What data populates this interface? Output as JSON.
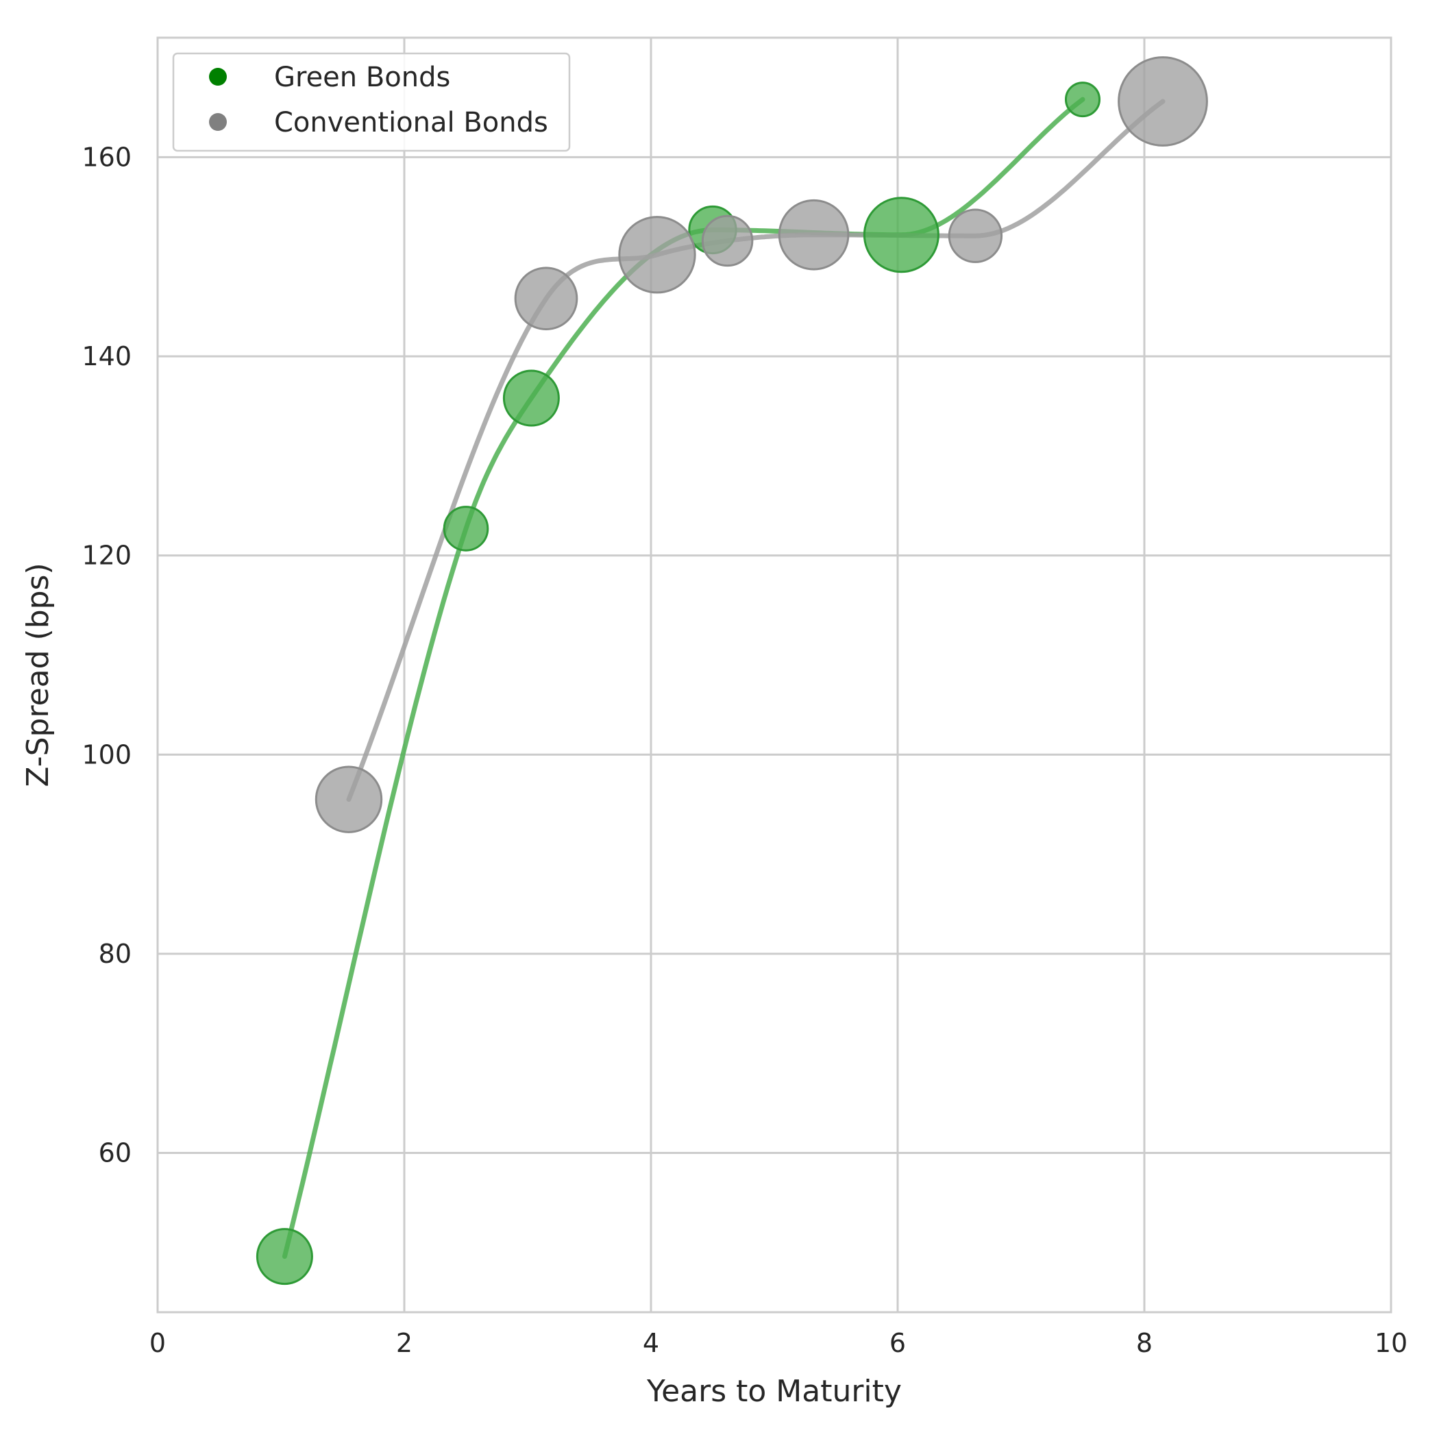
{
  "chart_data": {
    "type": "scatter",
    "title": "",
    "xlabel": "Years to Maturity",
    "ylabel": "Z-Spread (bps)",
    "xlim": [
      0,
      10
    ],
    "ylim": [
      44,
      172
    ],
    "xticks": [
      0,
      2,
      4,
      6,
      8,
      10
    ],
    "yticks": [
      60,
      80,
      100,
      120,
      140,
      160
    ],
    "grid": true,
    "legend_position": "top-left",
    "series": [
      {
        "name": "Green Bonds",
        "color": "#008000",
        "points": [
          {
            "x": 1.03,
            "y": 49.6,
            "size": 4
          },
          {
            "x": 2.5,
            "y": 122.7,
            "size": 2
          },
          {
            "x": 3.03,
            "y": 135.8,
            "size": 4
          },
          {
            "x": 4.5,
            "y": 152.7,
            "size": 2.5
          },
          {
            "x": 6.03,
            "y": 152.2,
            "size": 9
          },
          {
            "x": 7.5,
            "y": 165.8,
            "size": 0.8
          }
        ]
      },
      {
        "name": "Conventional Bonds",
        "color": "#808080",
        "points": [
          {
            "x": 1.55,
            "y": 95.5,
            "size": 6.5
          },
          {
            "x": 3.15,
            "y": 145.8,
            "size": 5.5
          },
          {
            "x": 4.05,
            "y": 150.2,
            "size": 9.5
          },
          {
            "x": 4.62,
            "y": 151.6,
            "size": 3
          },
          {
            "x": 5.32,
            "y": 152.2,
            "size": 7.5
          },
          {
            "x": 6.63,
            "y": 152.1,
            "size": 3.5
          },
          {
            "x": 8.15,
            "y": 165.6,
            "size": 14
          }
        ]
      }
    ]
  }
}
